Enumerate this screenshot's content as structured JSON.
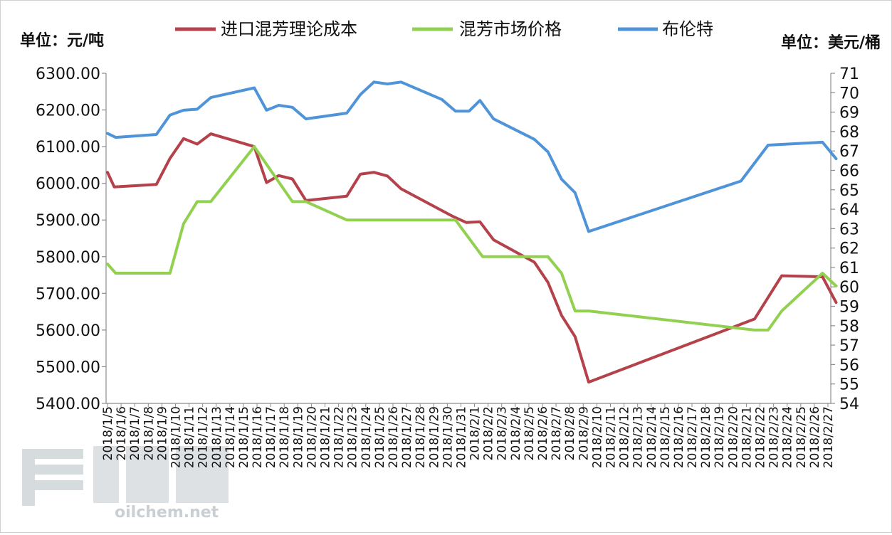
{
  "chart_data": {
    "type": "line",
    "units": {
      "left": "单位：元/吨",
      "right": "单位：美元/桶"
    },
    "left_ticks": [
      "6300.00",
      "6200.00",
      "6100.00",
      "6000.00",
      "5900.00",
      "5800.00",
      "5700.00",
      "5600.00",
      "5500.00",
      "5400.00"
    ],
    "right_ticks": [
      "71",
      "70",
      "69",
      "68",
      "67",
      "66",
      "65",
      "64",
      "63",
      "62",
      "61",
      "60",
      "59",
      "58",
      "57",
      "56",
      "55",
      "54"
    ],
    "ylim_left": [
      5400,
      6300
    ],
    "ylim_right": [
      54,
      71
    ],
    "grid": false,
    "legend_position": "top",
    "categories": [
      "2018/1/5",
      "2018/1/6",
      "2018/1/7",
      "2018/1/8",
      "2018/1/9",
      "2018/1/10",
      "2018/1/11",
      "2018/1/12",
      "2018/1/13",
      "2018/1/14",
      "2018/1/15",
      "2018/1/16",
      "2018/1/17",
      "2018/1/18",
      "2018/1/19",
      "2018/1/20",
      "2018/1/21",
      "2018/1/22",
      "2018/1/23",
      "2018/1/24",
      "2018/1/25",
      "2018/1/26",
      "2018/1/27",
      "2018/1/28",
      "2018/1/29",
      "2018/1/30",
      "2018/1/31",
      "2018/2/1",
      "2018/2/2",
      "2018/2/3",
      "2018/2/4",
      "2018/2/5",
      "2018/2/6",
      "2018/2/7",
      "2018/2/8",
      "2018/2/9",
      "2018/2/10",
      "2018/2/11",
      "2018/2/12",
      "2018/2/13",
      "2018/2/14",
      "2018/2/15",
      "2018/2/16",
      "2018/2/17",
      "2018/2/18",
      "2018/2/19",
      "2018/2/20",
      "2018/2/21",
      "2018/2/22",
      "2018/2/23",
      "2018/2/24",
      "2018/2/25",
      "2018/2/26",
      "2018/2/27"
    ],
    "series": [
      {
        "name": "进口混芳理论成本",
        "color": "#b5424a",
        "axis": "left",
        "points": [
          [
            0,
            6030
          ],
          [
            0.5,
            5990
          ],
          [
            3.6,
            5997
          ],
          [
            4.6,
            6068
          ],
          [
            5.6,
            6122
          ],
          [
            6.6,
            6107
          ],
          [
            7.6,
            6135
          ],
          [
            10.8,
            6100
          ],
          [
            11.7,
            6002
          ],
          [
            12.6,
            6021
          ],
          [
            13.6,
            6012
          ],
          [
            14.6,
            5953
          ],
          [
            17.6,
            5965
          ],
          [
            18.6,
            6025
          ],
          [
            19.6,
            6030
          ],
          [
            20.6,
            6020
          ],
          [
            21.6,
            5985
          ],
          [
            25.4,
            5910
          ],
          [
            26.4,
            5893
          ],
          [
            27.4,
            5895
          ],
          [
            28.4,
            5846
          ],
          [
            31.4,
            5785
          ],
          [
            32.4,
            5730
          ],
          [
            33.4,
            5640
          ],
          [
            34.4,
            5582
          ],
          [
            35.4,
            5458
          ],
          [
            47.6,
            5630
          ],
          [
            49.6,
            5748
          ],
          [
            52.6,
            5745
          ],
          [
            53.6,
            5675
          ]
        ]
      },
      {
        "name": "混芳市场价格",
        "color": "#92d050",
        "axis": "left",
        "points": [
          [
            0,
            5780
          ],
          [
            0.6,
            5755
          ],
          [
            4.6,
            5755
          ],
          [
            5.6,
            5890
          ],
          [
            6.6,
            5950
          ],
          [
            7.6,
            5950
          ],
          [
            10.8,
            6100
          ],
          [
            13.6,
            5950
          ],
          [
            14.6,
            5950
          ],
          [
            17.6,
            5900
          ],
          [
            25.6,
            5900
          ],
          [
            27.6,
            5800
          ],
          [
            32.4,
            5800
          ],
          [
            33.4,
            5755
          ],
          [
            34.4,
            5652
          ],
          [
            35.4,
            5652
          ],
          [
            47.6,
            5600
          ],
          [
            48.6,
            5600
          ],
          [
            49.6,
            5652
          ],
          [
            52.6,
            5755
          ],
          [
            53.6,
            5720
          ]
        ]
      },
      {
        "name": "布伦特",
        "color": "#4f94d8",
        "axis": "right",
        "points": [
          [
            0,
            67.9
          ],
          [
            0.6,
            67.7
          ],
          [
            3.6,
            67.85
          ],
          [
            4.6,
            68.85
          ],
          [
            5.6,
            69.1
          ],
          [
            6.6,
            69.15
          ],
          [
            7.6,
            69.75
          ],
          [
            10.8,
            70.25
          ],
          [
            11.7,
            69.1
          ],
          [
            12.6,
            69.35
          ],
          [
            13.6,
            69.25
          ],
          [
            14.6,
            68.65
          ],
          [
            17.6,
            68.95
          ],
          [
            18.6,
            69.9
          ],
          [
            19.6,
            70.55
          ],
          [
            20.6,
            70.45
          ],
          [
            21.6,
            70.55
          ],
          [
            24.6,
            69.65
          ],
          [
            25.6,
            69.05
          ],
          [
            26.6,
            69.05
          ],
          [
            27.4,
            69.6
          ],
          [
            28.4,
            68.65
          ],
          [
            31.4,
            67.6
          ],
          [
            32.4,
            66.95
          ],
          [
            33.4,
            65.55
          ],
          [
            34.4,
            64.85
          ],
          [
            35.4,
            62.85
          ],
          [
            46.6,
            65.45
          ],
          [
            48.6,
            67.3
          ],
          [
            52.6,
            67.45
          ],
          [
            53.6,
            66.6
          ]
        ]
      }
    ]
  },
  "watermark": {
    "text": "oilchem.net"
  }
}
